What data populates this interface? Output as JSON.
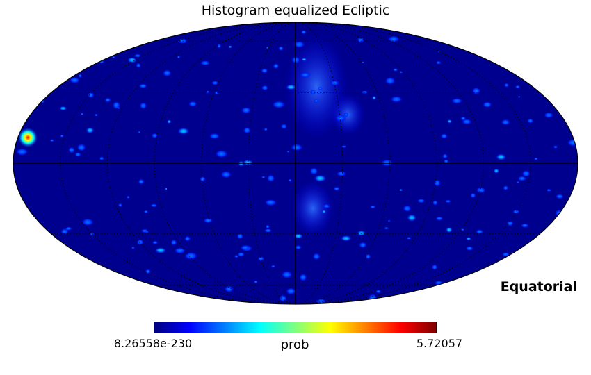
{
  "title": "Histogram equalized Ecliptic",
  "coordinate_label": "Equatorial",
  "colorbar": {
    "label": "prob",
    "min_label": "8.26558e-230",
    "max_label": "5.72057",
    "colormap": [
      "#00007f",
      "#0000ff",
      "#007fff",
      "#00ffff",
      "#7fff7f",
      "#ffff00",
      "#ff7f00",
      "#ff0000",
      "#7f0000"
    ]
  },
  "map": {
    "projection": "Mollweide",
    "background_color": "#00008f",
    "graticule": true
  }
}
